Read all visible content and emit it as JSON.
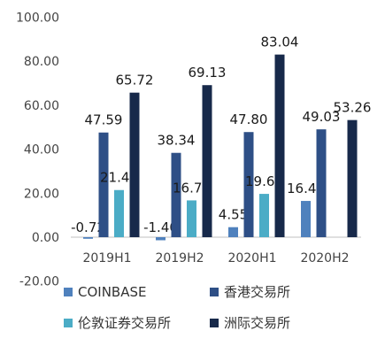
{
  "chart_data": {
    "type": "bar",
    "categories": [
      "2019H1",
      "2019H2",
      "2020H1",
      "2020H2"
    ],
    "series": [
      {
        "name": "COINBASE",
        "values": [
          -0.72,
          -1.4,
          4.55,
          16.48
        ],
        "labels": [
          "-0.72",
          "-1.40",
          "4.55",
          "16.48"
        ]
      },
      {
        "name": "香港交易所",
        "values": [
          47.59,
          38.34,
          47.8,
          49.03
        ],
        "labels": [
          "47.59",
          "38.34",
          "47.80",
          "49.03"
        ]
      },
      {
        "name": "伦敦证券交易所",
        "values": [
          21.43,
          16.73,
          19.69,
          null
        ],
        "labels": [
          "21.43",
          "16.73",
          "19.69",
          ""
        ]
      },
      {
        "name": "洲际交易所",
        "values": [
          65.72,
          69.13,
          83.04,
          53.26
        ],
        "labels": [
          "65.72",
          "69.13",
          "83.04",
          "53.26"
        ]
      }
    ],
    "colors": [
      "#4f81bd",
      "#2e4f86",
      "#4bacc6",
      "#17294a"
    ],
    "y_ticks": [
      "-20.00",
      "0.00",
      "20.00",
      "40.00",
      "60.00",
      "80.00",
      "100.00"
    ],
    "ylim": [
      -20,
      100
    ],
    "grid": false,
    "legend_position": "bottom"
  }
}
